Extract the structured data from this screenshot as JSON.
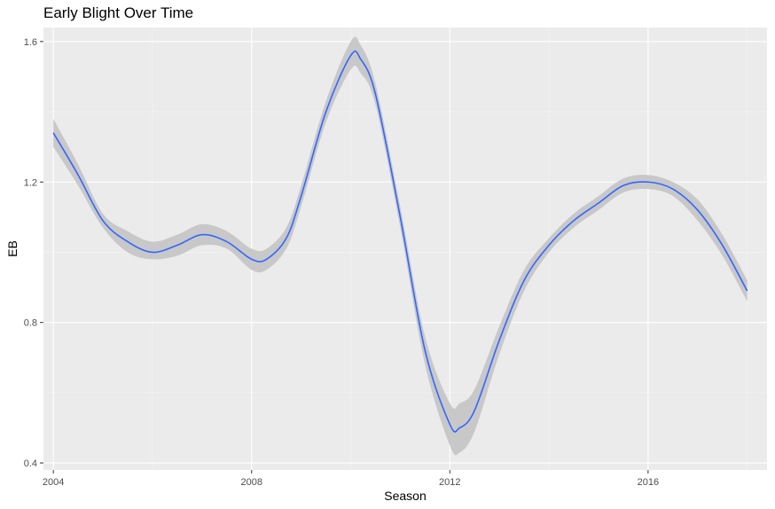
{
  "chart_data": {
    "type": "line",
    "title": "Early Blight Over Time",
    "xlabel": "Season",
    "ylabel": "EB",
    "xlim": [
      2003.8,
      2018.4
    ],
    "ylim": [
      0.38,
      1.64
    ],
    "x_ticks": [
      2004,
      2008,
      2012,
      2016
    ],
    "x_tick_labels": [
      "2004",
      "2008",
      "2012",
      "2016"
    ],
    "y_ticks": [
      0.4,
      0.8,
      1.2,
      1.6
    ],
    "y_tick_labels": [
      "0.4",
      "0.8",
      "1.2",
      "1.6"
    ],
    "grid": true,
    "colors": {
      "panel_background": "#ebebeb",
      "grid_major": "#ffffff",
      "grid_minor": "#f5f5f5",
      "line": "#3366ff",
      "ribbon": "#c8c8c8"
    },
    "series": [
      {
        "x": [
          2004,
          2004.5,
          2005,
          2005.5,
          2006,
          2006.5,
          2007,
          2007.5,
          2008,
          2008.3,
          2008.7,
          2009,
          2009.5,
          2010,
          2010.2,
          2010.5,
          2011,
          2011.5,
          2012,
          2012.2,
          2012.5,
          2013,
          2013.5,
          2014,
          2014.5,
          2015,
          2015.5,
          2016,
          2016.5,
          2017,
          2017.5,
          2018
        ],
        "y": [
          1.34,
          1.22,
          1.09,
          1.03,
          1.0,
          1.02,
          1.05,
          1.03,
          0.98,
          0.98,
          1.04,
          1.16,
          1.4,
          1.56,
          1.55,
          1.45,
          1.1,
          0.72,
          0.51,
          0.5,
          0.55,
          0.75,
          0.92,
          1.02,
          1.09,
          1.14,
          1.19,
          1.2,
          1.18,
          1.12,
          1.02,
          0.89
        ],
        "lower": [
          1.3,
          1.19,
          1.07,
          1.0,
          0.98,
          0.99,
          1.02,
          1.01,
          0.95,
          0.95,
          1.01,
          1.13,
          1.37,
          1.52,
          1.51,
          1.42,
          1.07,
          0.68,
          0.45,
          0.43,
          0.49,
          0.71,
          0.89,
          1.0,
          1.07,
          1.12,
          1.17,
          1.18,
          1.16,
          1.09,
          0.99,
          0.86
        ],
        "upper": [
          1.38,
          1.25,
          1.11,
          1.06,
          1.03,
          1.05,
          1.08,
          1.06,
          1.01,
          1.01,
          1.07,
          1.19,
          1.43,
          1.6,
          1.59,
          1.48,
          1.13,
          0.76,
          0.57,
          0.57,
          0.61,
          0.79,
          0.95,
          1.04,
          1.11,
          1.16,
          1.21,
          1.22,
          1.2,
          1.15,
          1.05,
          0.92
        ]
      }
    ]
  }
}
